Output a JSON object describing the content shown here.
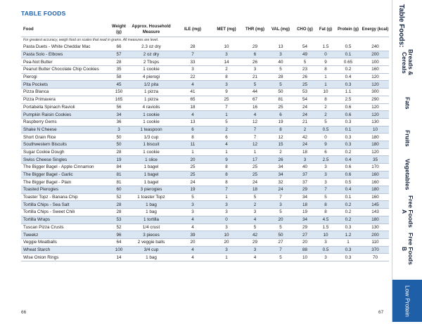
{
  "page": {
    "title": "TABLE FOODS",
    "side_title": "Table Foods:",
    "page_left": "66",
    "page_right": "67"
  },
  "table": {
    "headers": [
      "Food",
      "Weight (g)",
      "Approx. Household Measure",
      "ILE (mg)",
      "MET (mg)",
      "THR (mg)",
      "VAL (mg)",
      "CHO (g)",
      "Fat (g)",
      "Protein (g)",
      "Energy (kcal)"
    ],
    "note": "For greatest accuracy, weigh food on scales that read in grams. All measures are level.",
    "rows": [
      [
        "Pasta Duets - White Cheddar Mac",
        "66",
        "2.3 oz dry",
        "28",
        "10",
        "29",
        "13",
        "54",
        "1.5",
        "0.5",
        "240"
      ],
      [
        "Pasta Solo - Elbows",
        "57",
        "2 oz dry",
        "7",
        "3",
        "6",
        "3",
        "49",
        "0",
        "0.1",
        "200"
      ],
      [
        "Pea-Not Butter",
        "28",
        "2 Tbsps",
        "33",
        "14",
        "26",
        "40",
        "5",
        "9",
        "0.65",
        "100"
      ],
      [
        "Peanut Butter Chocolate Chip Cookies",
        "35",
        "1 cookie",
        "3",
        "2",
        "3",
        "5",
        "23",
        "8",
        "0.2",
        "160"
      ],
      [
        "Pierogi",
        "58",
        "4 pierogi",
        "22",
        "8",
        "21",
        "28",
        "26",
        "1",
        "0.4",
        "120"
      ],
      [
        "Pita Pockets",
        "45",
        "1/2 pita",
        "4",
        "3",
        "5",
        "5",
        "25",
        "1",
        "0.3",
        "120"
      ],
      [
        "Pizza Blanca",
        "150",
        "1 pizza",
        "41",
        "9",
        "44",
        "50",
        "53",
        "10",
        "1.1",
        "300"
      ],
      [
        "Pizza Primavera",
        "165",
        "1 pizza",
        "65",
        "25",
        "67",
        "81",
        "54",
        "8",
        "2.5",
        "290"
      ],
      [
        "Portabella Spinach Ravioli",
        "56",
        "4 raviolis",
        "18",
        "7",
        "16",
        "25",
        "24",
        "2",
        "0.6",
        "120"
      ],
      [
        "Pumpkin Raisin Cookies",
        "34",
        "1 cookie",
        "4",
        "1",
        "4",
        "6",
        "24",
        "2",
        "0.6",
        "120"
      ],
      [
        "Raspberry Gems",
        "36",
        "1 cookie",
        "13",
        "5",
        "12",
        "19",
        "21",
        "5",
        "0.3",
        "130"
      ],
      [
        "Shake N Cheese",
        "3",
        "1 teaspoon",
        "6",
        "2",
        "7",
        "8",
        "2",
        "0.5",
        "0.1",
        "10"
      ],
      [
        "Short Grain Rice",
        "50",
        "1/3 cup",
        "8",
        "6",
        "7",
        "12",
        "42",
        "0",
        "0.3",
        "180"
      ],
      [
        "Southwestern Biscuits",
        "50",
        "1 biscuit",
        "11",
        "4",
        "12",
        "15",
        "24",
        "9",
        "0.3",
        "180"
      ],
      [
        "Sugar Cookie Dough",
        "28",
        "1 cookie",
        "1",
        "1",
        "1",
        "2",
        "18",
        "6",
        "0.2",
        "120"
      ],
      [
        "Swiss Cheese Singles",
        "19",
        "1 slice",
        "20",
        "9",
        "17",
        "26",
        "3",
        "2.5",
        "0.4",
        "35"
      ],
      [
        "The Bigger Bagel - Apple Cinnamon",
        "84",
        "1 bagel",
        "25",
        "8",
        "25",
        "34",
        "40",
        "3",
        "0.6",
        "170"
      ],
      [
        "The Bigger Bagel - Garlic",
        "81",
        "1 bagel",
        "25",
        "8",
        "25",
        "34",
        "37",
        "3",
        "0.6",
        "160"
      ],
      [
        "The Bigger Bagel - Plain",
        "81",
        "1 bagel",
        "24",
        "8",
        "24",
        "32",
        "37",
        "3",
        "0.5",
        "160"
      ],
      [
        "Toasted Pierogies",
        "60",
        "3 pierogies",
        "19",
        "7",
        "18",
        "24",
        "29",
        "7",
        "0.4",
        "180"
      ],
      [
        "Toaster Topz - Banana Chip",
        "52",
        "1 toaster Topz",
        "5",
        "1",
        "5",
        "7",
        "34",
        "5",
        "0.1",
        "160"
      ],
      [
        "Tortilla Chips - Sea Salt",
        "28",
        "1 bag",
        "3",
        "3",
        "2",
        "3",
        "18",
        "8",
        "0.2",
        "145"
      ],
      [
        "Tortilla Chips - Sweet Chili",
        "28",
        "1 bag",
        "3",
        "3",
        "3",
        "5",
        "19",
        "8",
        "0.2",
        "143"
      ],
      [
        "Tortilla Wraps",
        "53",
        "1 tortilla",
        "4",
        "0",
        "4",
        "20",
        "34",
        "4.5",
        "0.2",
        "180"
      ],
      [
        "Tuscan Pizza Crusts",
        "52",
        "1/4 crust",
        "4",
        "3",
        "5",
        "5",
        "29",
        "1.5",
        "0.3",
        "130"
      ],
      [
        "Tweekz",
        "96",
        "3 pieces",
        "39",
        "10",
        "42",
        "50",
        "27",
        "10",
        "1.2",
        "200"
      ],
      [
        "Veggie Meatballs",
        "64",
        "2 veggie balls",
        "20",
        "20",
        "29",
        "27",
        "20",
        "3",
        "1",
        "110"
      ],
      [
        "Wheat Starch",
        "100",
        "3/4 cup",
        "4",
        "3",
        "3",
        "7",
        "88",
        "0.5",
        "0.3",
        "370"
      ],
      [
        "Wise Onion Rings",
        "14",
        "1 bag",
        "4",
        "1",
        "4",
        "5",
        "10",
        "3",
        "0.3",
        "70"
      ]
    ]
  },
  "sidebar": {
    "tabs": [
      {
        "label": "Breads & Cereals"
      },
      {
        "label": "Fats"
      },
      {
        "label": "Fruits"
      },
      {
        "label": "Vegetables"
      },
      {
        "label": "Free Foods A"
      },
      {
        "label": "Free Foods B"
      },
      {
        "label": "Low Protein"
      }
    ]
  }
}
